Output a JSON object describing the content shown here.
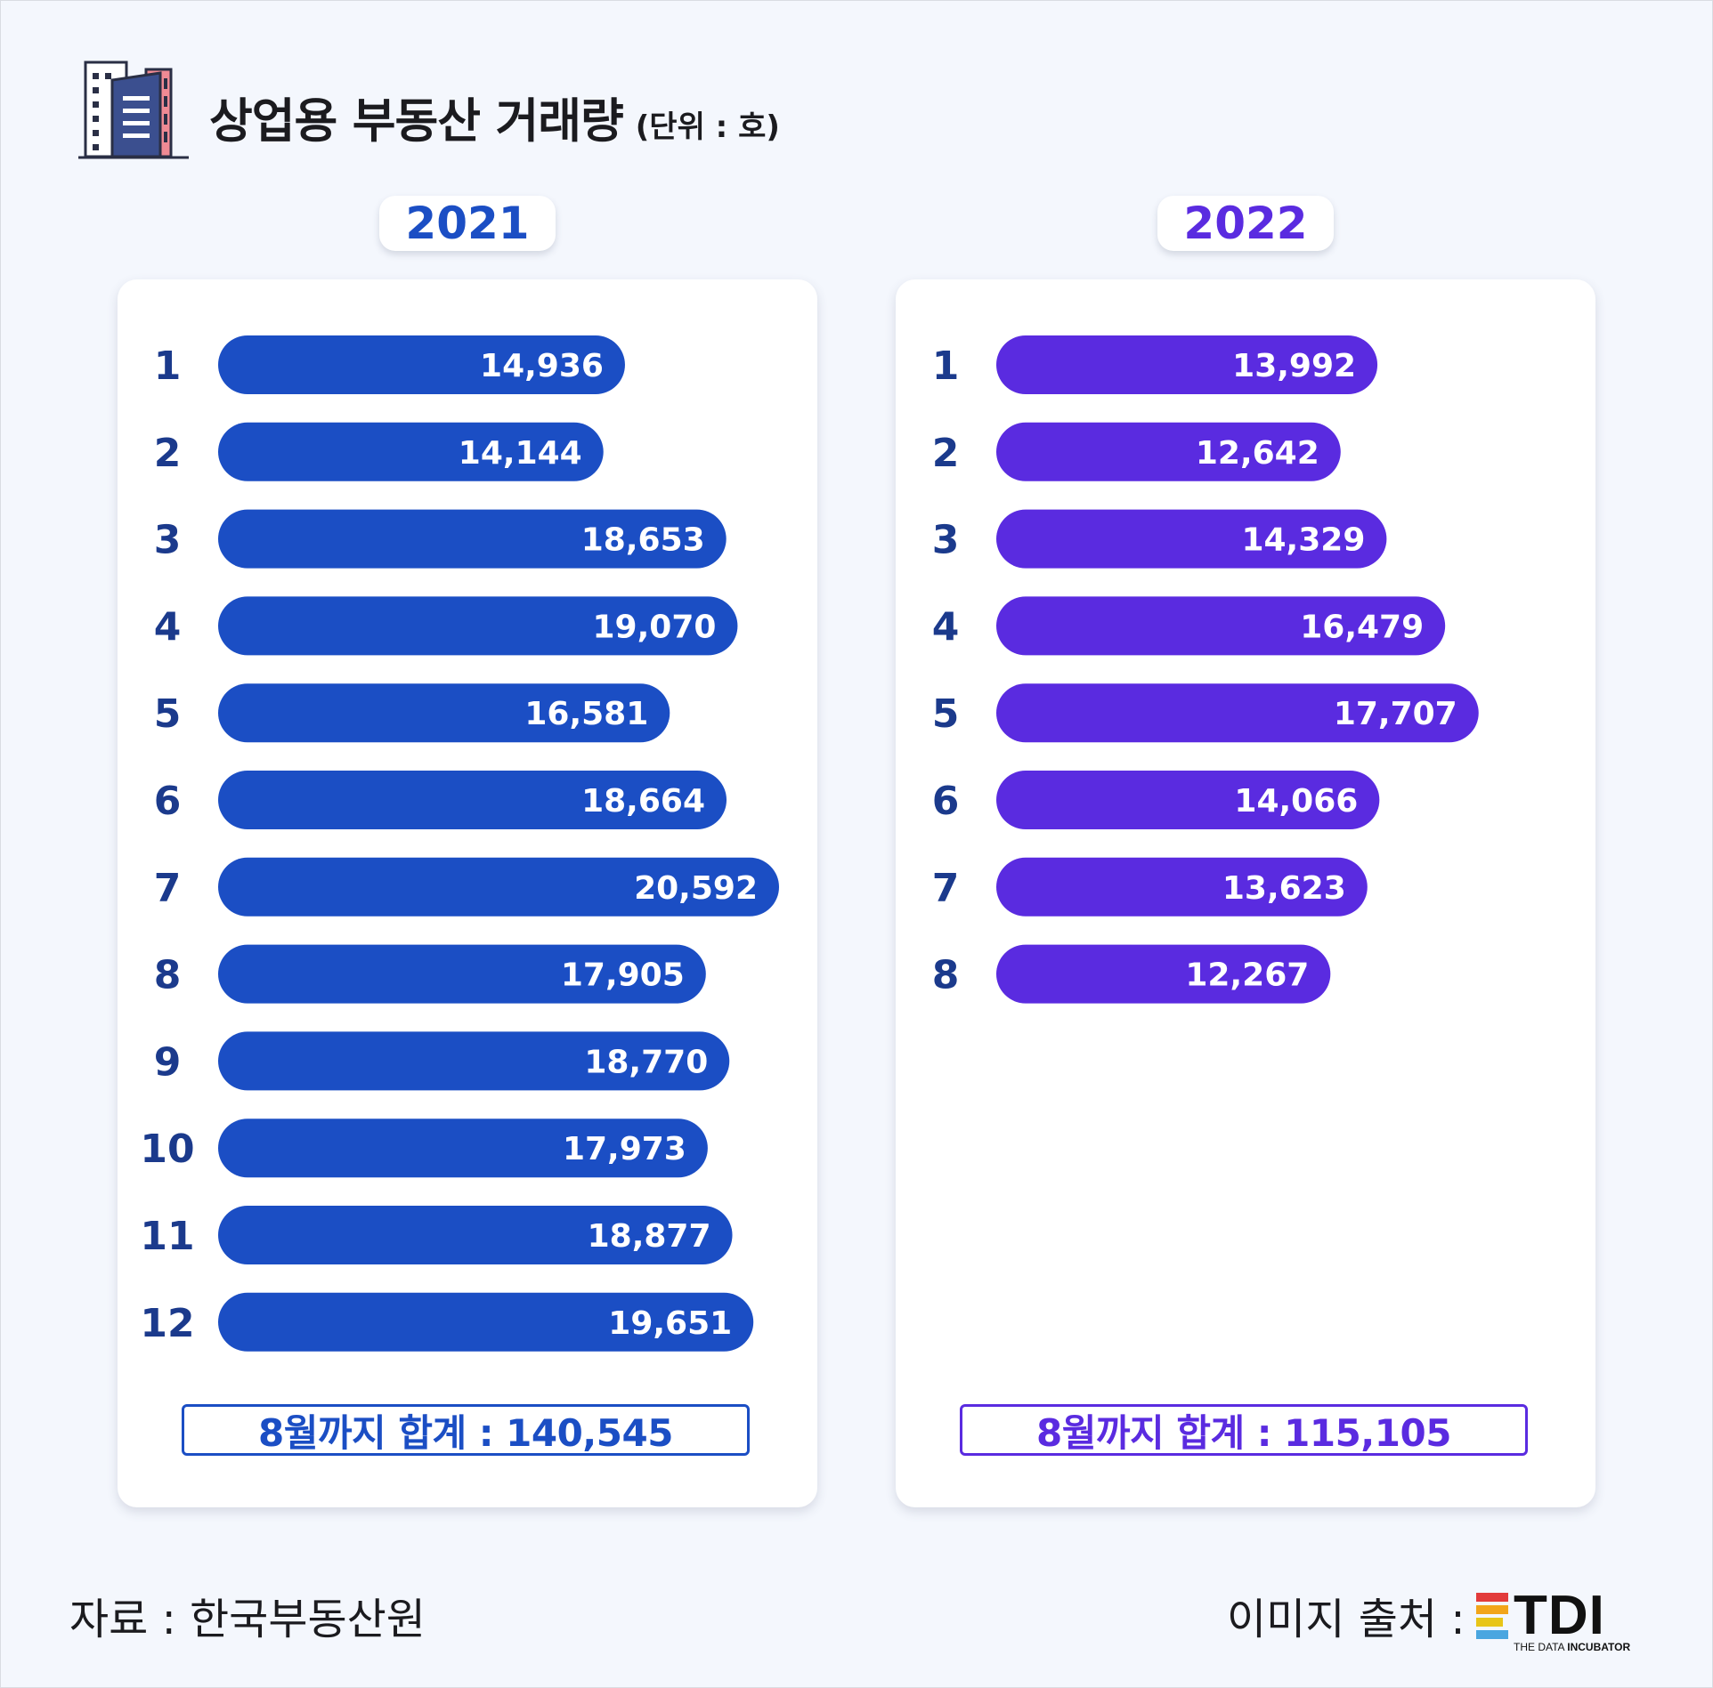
{
  "title": {
    "main": "상업용 부동산 거래량",
    "unit": "(단위 : 호)"
  },
  "icon": "building-icon",
  "colors": {
    "series_2021": "#1b4ec4",
    "series_2022": "#5a2be0",
    "month_label": "#1b3a8c"
  },
  "chart_data": [
    {
      "type": "bar",
      "orientation": "horizontal",
      "title": "2021",
      "categories": [
        "1",
        "2",
        "3",
        "4",
        "5",
        "6",
        "7",
        "8",
        "9",
        "10",
        "11",
        "12"
      ],
      "values": [
        14936,
        14144,
        18653,
        19070,
        16581,
        18664,
        20592,
        17905,
        18770,
        17973,
        18877,
        19651
      ],
      "value_labels": [
        "14,936",
        "14,144",
        "18,653",
        "19,070",
        "16,581",
        "18,664",
        "20,592",
        "17,905",
        "18,770",
        "17,973",
        "18,877",
        "19,651"
      ],
      "total_label": "8월까지 합계 : 140,545",
      "color": "#1b4ec4"
    },
    {
      "type": "bar",
      "orientation": "horizontal",
      "title": "2022",
      "categories": [
        "1",
        "2",
        "3",
        "4",
        "5",
        "6",
        "7",
        "8"
      ],
      "values": [
        13992,
        12642,
        14329,
        16479,
        17707,
        14066,
        13623,
        12267
      ],
      "value_labels": [
        "13,992",
        "12,642",
        "14,329",
        "16,479",
        "17,707",
        "14,066",
        "13,623",
        "12,267"
      ],
      "total_label": "8월까지 합계 : 115,105",
      "color": "#5a2be0"
    }
  ],
  "footer": {
    "source": "자료 : 한국부동산원",
    "credit": "이미지 출처 :",
    "logo_text": "TDI",
    "logo_sub_light": "THE DATA ",
    "logo_sub_bold": "INCUBATOR"
  }
}
